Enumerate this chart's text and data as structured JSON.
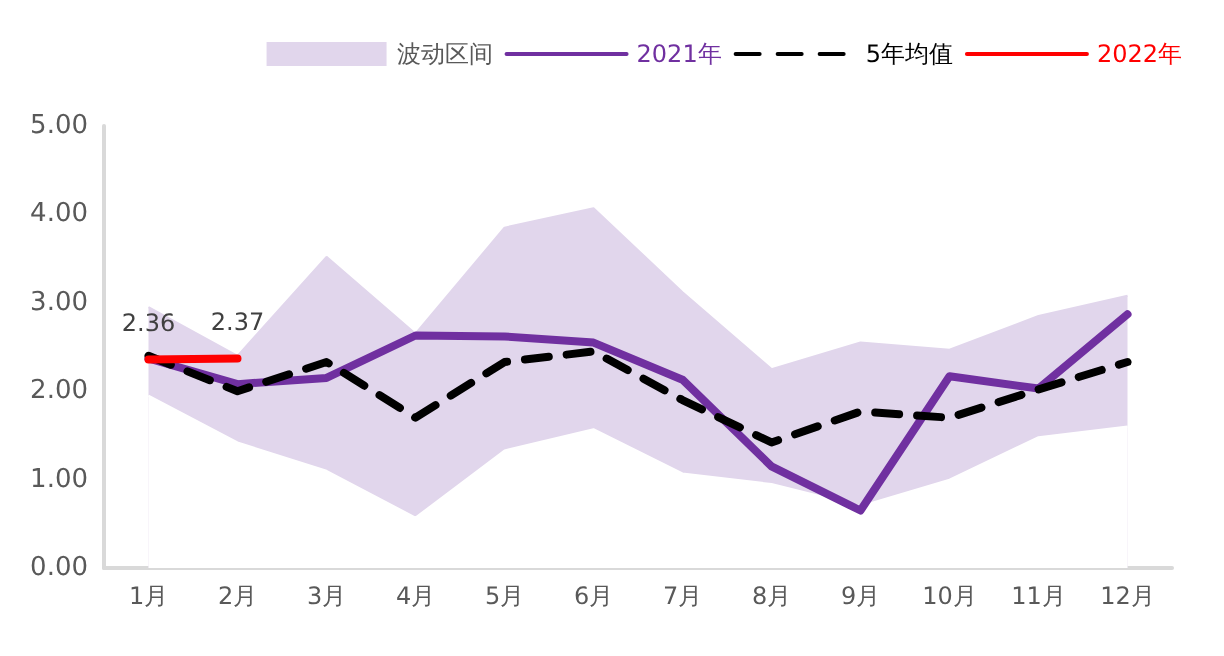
{
  "chart_data": {
    "type": "line",
    "categories": [
      "1月",
      "2月",
      "3月",
      "4月",
      "5月",
      "6月",
      "7月",
      "8月",
      "9月",
      "10月",
      "11月",
      "12月"
    ],
    "series": [
      {
        "name": "波动区间",
        "type": "area",
        "color": "#e1d6ec",
        "values": [
          2.95,
          2.4,
          3.52,
          2.65,
          3.85,
          4.07,
          3.12,
          2.25,
          2.55,
          2.47,
          2.85,
          3.08
        ]
      },
      {
        "type": "area",
        "color": "#ffffff",
        "values": [
          1.95,
          1.42,
          1.1,
          0.57,
          1.33,
          1.57,
          1.07,
          0.95,
          0.7,
          1.0,
          1.48,
          1.6
        ]
      },
      {
        "name": "2021年",
        "color": "#7030a0",
        "line_style": "solid",
        "values": [
          2.37,
          2.08,
          2.15,
          2.63,
          2.62,
          2.55,
          2.13,
          1.15,
          0.65,
          2.17,
          2.03,
          2.87
        ]
      },
      {
        "name": "5年均值",
        "color": "#000000",
        "line_style": "dashed",
        "values": [
          2.4,
          2.0,
          2.33,
          1.7,
          2.33,
          2.45,
          1.9,
          1.42,
          1.77,
          1.7,
          2.02,
          2.33
        ]
      },
      {
        "name": "2022年",
        "color": "#ff0000",
        "line_style": "solid",
        "values": [
          2.36,
          2.37,
          null,
          null,
          null,
          null,
          null,
          null,
          null,
          null,
          null,
          null
        ],
        "value_labels": [
          "2.36",
          "2.37",
          null,
          null,
          null,
          null,
          null,
          null,
          null,
          null,
          null,
          null
        ]
      }
    ],
    "ylim": [
      0,
      5
    ],
    "yticks": [
      {
        "value": 0,
        "label": "0.00"
      },
      {
        "value": 1,
        "label": "1.00"
      },
      {
        "value": 2,
        "label": "2.00"
      },
      {
        "value": 3,
        "label": "3.00"
      },
      {
        "value": 4,
        "label": "4.00"
      },
      {
        "value": 5,
        "label": "5.00"
      }
    ],
    "grid": false,
    "legend": "top right",
    "marker": "none"
  }
}
